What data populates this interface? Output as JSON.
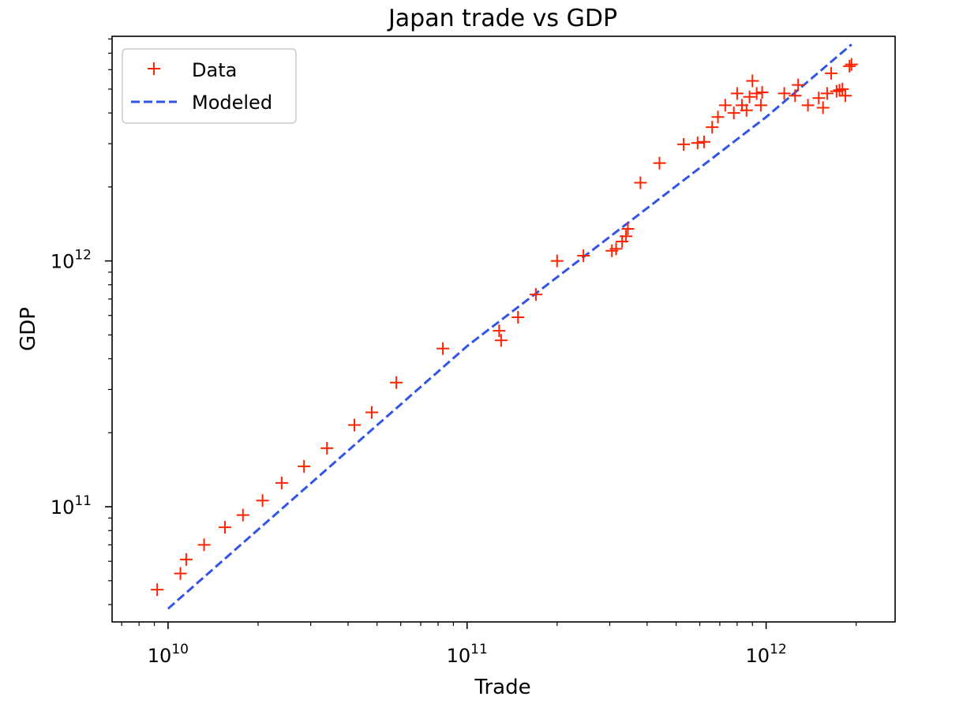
{
  "chart_data": {
    "type": "scatter",
    "title": "Japan trade vs GDP",
    "xlabel": "Trade",
    "ylabel": "GDP",
    "xscale": "log",
    "yscale": "log",
    "xlim": [
      6500000000.0,
      2700000000000.0
    ],
    "ylim": [
      34000000000.0,
      8200000000000.0
    ],
    "x_ticks": [
      {
        "value": 10000000000.0,
        "base": "10",
        "exp": "10"
      },
      {
        "value": 100000000000.0,
        "base": "10",
        "exp": "11"
      },
      {
        "value": 1000000000000.0,
        "base": "10",
        "exp": "12"
      }
    ],
    "y_ticks": [
      {
        "value": 100000000000.0,
        "base": "10",
        "exp": "11"
      },
      {
        "value": 1000000000000.0,
        "base": "10",
        "exp": "12"
      }
    ],
    "grid": false,
    "legend_position": "upper-left",
    "series": [
      {
        "name": "Data",
        "kind": "scatter",
        "marker": "+",
        "color": "#ff2200",
        "x": [
          9200000000.0,
          11000000000.0,
          11500000000.0,
          13200000000.0,
          15500000000.0,
          17800000000.0,
          20700000000.0,
          24000000000.0,
          28500000000.0,
          34000000000.0,
          42000000000.0,
          48000000000.0,
          58000000000.0,
          83000000000.0,
          128000000000.0,
          130000000000.0,
          148000000000.0,
          170000000000.0,
          200000000000.0,
          245000000000.0,
          305000000000.0,
          315000000000.0,
          330000000000.0,
          340000000000.0,
          345000000000.0,
          380000000000.0,
          440000000000.0,
          530000000000.0,
          590000000000.0,
          620000000000.0,
          660000000000.0,
          690000000000.0,
          730000000000.0,
          780000000000.0,
          800000000000.0,
          830000000000.0,
          860000000000.0,
          880000000000.0,
          900000000000.0,
          930000000000.0,
          960000000000.0,
          970000000000.0,
          1150000000000.0,
          1250000000000.0,
          1280000000000.0,
          1380000000000.0,
          1500000000000.0,
          1550000000000.0,
          1600000000000.0,
          1650000000000.0,
          1720000000000.0,
          1760000000000.0,
          1800000000000.0,
          1840000000000.0,
          1900000000000.0,
          1930000000000.0
        ],
        "y": [
          46000000000.0,
          53500000000.0,
          61000000000.0,
          70000000000.0,
          82500000000.0,
          92500000000.0,
          106000000000.0,
          125000000000.0,
          146000000000.0,
          173000000000.0,
          215000000000.0,
          242000000000.0,
          320000000000.0,
          440000000000.0,
          520000000000.0,
          475000000000.0,
          590000000000.0,
          730000000000.0,
          1000000000000.0,
          1050000000000.0,
          1100000000000.0,
          1120000000000.0,
          1200000000000.0,
          1260000000000.0,
          1350000000000.0,
          2080000000000.0,
          2500000000000.0,
          2980000000000.0,
          3020000000000.0,
          3050000000000.0,
          3500000000000.0,
          3850000000000.0,
          4300000000000.0,
          4000000000000.0,
          4800000000000.0,
          4300000000000.0,
          4100000000000.0,
          4650000000000.0,
          5400000000000.0,
          4800000000000.0,
          4300000000000.0,
          4850000000000.0,
          4800000000000.0,
          4700000000000.0,
          5200000000000.0,
          4300000000000.0,
          4600000000000.0,
          4200000000000.0,
          4800000000000.0,
          5800000000000.0,
          4900000000000.0,
          4950000000000.0,
          5000000000000.0,
          4700000000000.0,
          6200000000000.0,
          6300000000000.0
        ]
      },
      {
        "name": "Modeled",
        "kind": "line",
        "dash": "dashed",
        "color": "#3355e6",
        "x": [
          10000000000.0,
          100000000000.0,
          1000000000000.0,
          1930000000000.0
        ],
        "y": [
          38500000000.0,
          450000000000.0,
          3850000000000.0,
          7600000000000.0
        ]
      }
    ]
  }
}
